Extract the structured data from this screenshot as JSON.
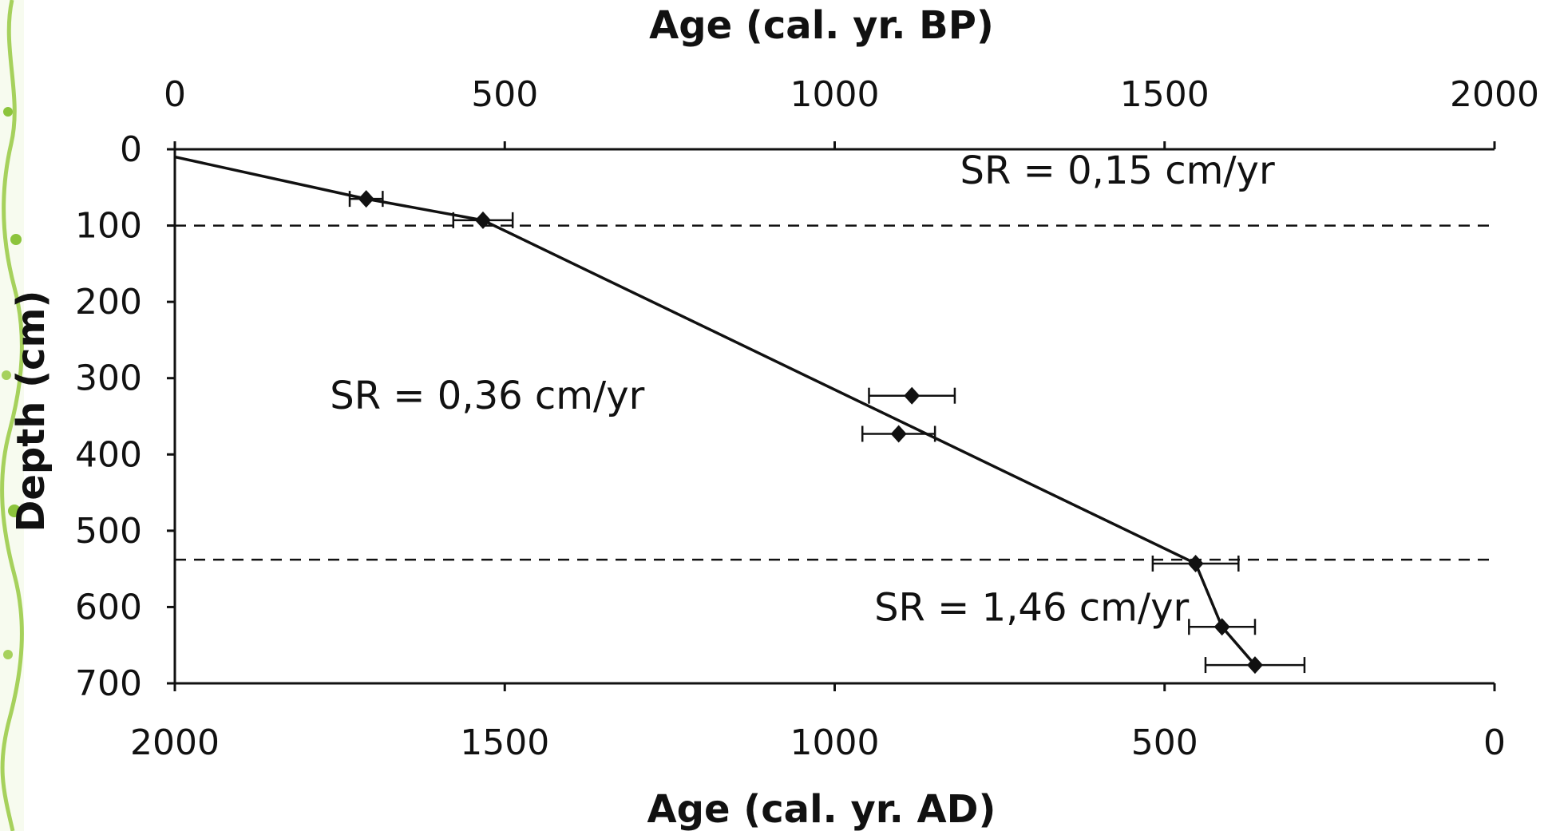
{
  "chart_data": {
    "type": "scatter",
    "top_axis": {
      "label": "Age (cal. yr. BP)",
      "range": [
        0,
        2000
      ],
      "ticks": [
        "0",
        "500",
        "1000",
        "1500",
        "2000"
      ]
    },
    "bottom_axis": {
      "label": "Age (cal. yr. AD)",
      "range": [
        2000,
        0
      ],
      "ticks": [
        "2000",
        "1500",
        "1000",
        "500",
        "0"
      ]
    },
    "y_axis": {
      "label": "Depth (cm)",
      "range": [
        0,
        700
      ],
      "inverted": true,
      "ticks": [
        "0",
        "100",
        "200",
        "300",
        "400",
        "500",
        "600",
        "700"
      ]
    },
    "points": [
      {
        "age_bp": 290,
        "depth": 65,
        "err": 25
      },
      {
        "age_bp": 467,
        "depth": 93,
        "err": 45
      },
      {
        "age_bp": 1117,
        "depth": 323,
        "err": 65
      },
      {
        "age_bp": 1097,
        "depth": 373,
        "err": 55
      },
      {
        "age_bp": 1547,
        "depth": 543,
        "err": 65
      },
      {
        "age_bp": 1587,
        "depth": 626,
        "err": 50
      },
      {
        "age_bp": 1637,
        "depth": 676,
        "err": 75
      }
    ],
    "age_model": {
      "age_bp": [
        0,
        290,
        467,
        1547,
        1587,
        1637
      ],
      "depth": [
        10,
        65,
        93,
        543,
        626,
        676
      ]
    },
    "boundaries_depth": [
      100,
      538
    ],
    "annotations": [
      {
        "text": "SR = 0,15 cm/yr",
        "age_bp": 1190,
        "depth": 45
      },
      {
        "text": "SR = 0,36 cm/yr",
        "age_bp": 235,
        "depth": 340
      },
      {
        "text": "SR = 1,46 cm/yr",
        "age_bp": 1060,
        "depth": 618
      }
    ],
    "grid": false,
    "legend": "none"
  },
  "decor": {
    "accent": "#8cc43c"
  }
}
